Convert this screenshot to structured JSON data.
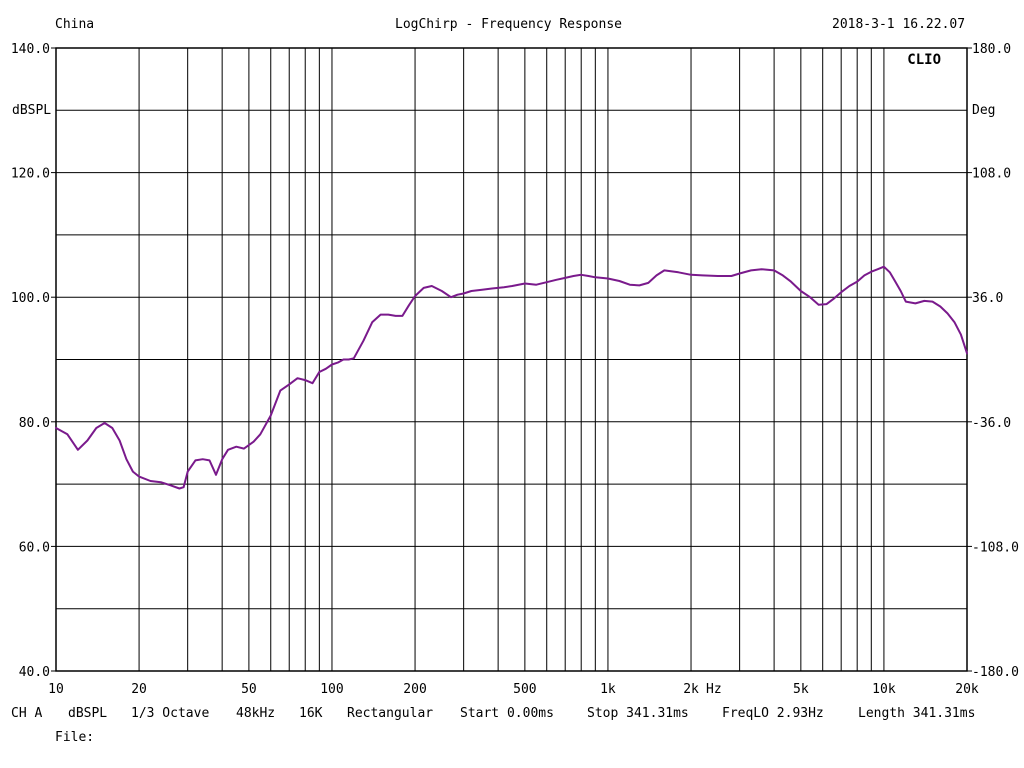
{
  "header": {
    "left": "China",
    "center": "LogChirp - Frequency Response",
    "right": "2018-3-1 16.22.07"
  },
  "brand": "CLIO",
  "left_axis_unit": "dBSPL",
  "right_axis_unit": "Deg",
  "footer": {
    "channel": "CH A",
    "unit": "dBSPL",
    "smoothing": "1/3 Octave",
    "rate": "48kHz",
    "size": "16K",
    "window": "Rectangular",
    "start": "Start 0.00ms",
    "stop": "Stop 341.31ms",
    "freqlo": "FreqLO 2.93Hz",
    "length": "Length 341.31ms",
    "file": "File:"
  },
  "chart_data": {
    "type": "line",
    "title": "LogChirp - Frequency Response",
    "xlabel": "Hz",
    "ylabel": "dBSPL",
    "y2label": "Deg",
    "x_scale": "log",
    "xlim": [
      10,
      20000
    ],
    "ylim": [
      40,
      140
    ],
    "y2lim": [
      -180,
      180
    ],
    "grid": true,
    "line_color": "#7a1a8c",
    "x_tick_labels": [
      {
        "v": 10,
        "label": "10"
      },
      {
        "v": 20,
        "label": "20"
      },
      {
        "v": 50,
        "label": "50"
      },
      {
        "v": 100,
        "label": "100"
      },
      {
        "v": 200,
        "label": "200"
      },
      {
        "v": 500,
        "label": "500"
      },
      {
        "v": 1000,
        "label": "1k"
      },
      {
        "v": 2000,
        "label": "2k"
      },
      {
        "v": 5000,
        "label": "5k"
      },
      {
        "v": 10000,
        "label": "10k"
      },
      {
        "v": 20000,
        "label": "20k"
      }
    ],
    "y_tick_labels": [
      {
        "v": 140,
        "label": "140.0"
      },
      {
        "v": 120,
        "label": "120.0"
      },
      {
        "v": 100,
        "label": "100.0"
      },
      {
        "v": 80,
        "label": "80.0"
      },
      {
        "v": 60,
        "label": "60.0"
      },
      {
        "v": 40,
        "label": "40.0"
      }
    ],
    "y2_tick_labels": [
      {
        "v": 180,
        "label": "180.0"
      },
      {
        "v": 108,
        "label": "108.0"
      },
      {
        "v": 36,
        "label": "36.0"
      },
      {
        "v": -36,
        "label": "-36.0"
      },
      {
        "v": -108,
        "label": "-108.0"
      },
      {
        "v": -180,
        "label": "-180.0"
      }
    ],
    "series": [
      {
        "x": [
          10,
          11,
          12,
          13,
          14,
          15,
          16,
          17,
          18,
          19,
          20,
          22,
          24,
          26,
          28,
          29,
          30,
          32,
          34,
          36,
          38,
          40,
          42,
          45,
          48,
          52,
          55,
          60,
          65,
          70,
          75,
          80,
          85,
          90,
          95,
          100,
          105,
          110,
          115,
          120,
          130,
          140,
          150,
          160,
          170,
          180,
          190,
          200,
          215,
          230,
          250,
          270,
          285,
          300,
          320,
          350,
          380,
          420,
          450,
          500,
          550,
          600,
          650,
          700,
          750,
          800,
          850,
          900,
          950,
          1000,
          1100,
          1200,
          1300,
          1400,
          1500,
          1600,
          1800,
          2000,
          2200,
          2500,
          2800,
          3000,
          3300,
          3600,
          4000,
          4300,
          4600,
          5000,
          5400,
          5800,
          6200,
          6600,
          7000,
          7500,
          8000,
          8500,
          9000,
          9500,
          10000,
          10500,
          11000,
          11500,
          12000,
          13000,
          14000,
          15000,
          16000,
          17000,
          18000,
          19000,
          20000
        ],
        "y": [
          79,
          78,
          75.5,
          77,
          79,
          79.8,
          79,
          77,
          74,
          72,
          71.2,
          70.5,
          70.3,
          69.8,
          69.3,
          69.5,
          72,
          73.8,
          74,
          73.8,
          71.5,
          74,
          75.5,
          76,
          75.7,
          76.8,
          78,
          81,
          85,
          86,
          87,
          86.7,
          86.2,
          88,
          88.5,
          89.2,
          89.5,
          90,
          90,
          90.2,
          93,
          96,
          97.2,
          97.2,
          97,
          97,
          98.7,
          100.2,
          101.5,
          101.8,
          101,
          100,
          100.4,
          100.6,
          101,
          101.2,
          101.4,
          101.6,
          101.8,
          102.2,
          102,
          102.4,
          102.8,
          103.1,
          103.4,
          103.6,
          103.4,
          103.2,
          103.1,
          103,
          102.6,
          102,
          101.9,
          102.3,
          103.5,
          104.3,
          104,
          103.6,
          103.5,
          103.4,
          103.4,
          103.8,
          104.3,
          104.5,
          104.3,
          103.5,
          102.5,
          101,
          100,
          98.8,
          98.9,
          99.8,
          100.8,
          101.8,
          102.5,
          103.5,
          104.1,
          104.5,
          104.9,
          104,
          102.5,
          101,
          99.3,
          99,
          99.4,
          99.3,
          98.5,
          97.4,
          96,
          94,
          91
        ]
      }
    ]
  }
}
